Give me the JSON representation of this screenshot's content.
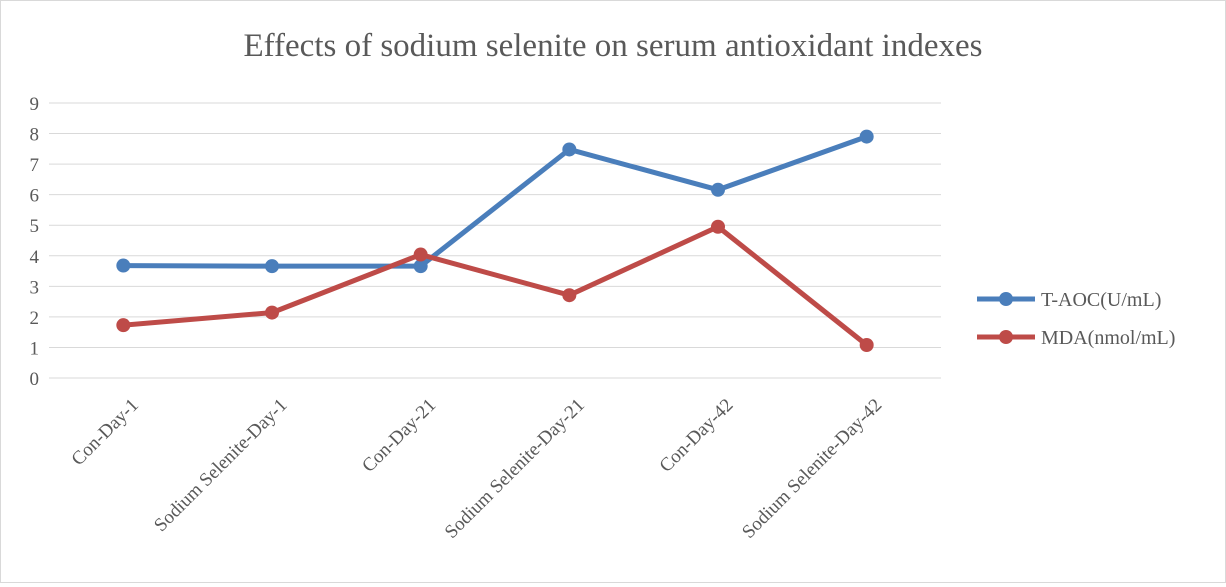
{
  "chart_data": {
    "type": "line",
    "title": "Effects of sodium selenite on serum antioxidant indexes",
    "xlabel": "",
    "ylabel": "",
    "categories": [
      "Con-Day-1",
      "Sodium Selenite-Day-1",
      "Con-Day-21",
      "Sodium Selenite-Day-21",
      "Con-Day-42",
      "Sodium Selenite-Day-42"
    ],
    "ylim": [
      0,
      9
    ],
    "yticks": [
      "0",
      "1",
      "2",
      "3",
      "4",
      "5",
      "6",
      "7",
      "8",
      "9"
    ],
    "grid": true,
    "legend_position": "right",
    "series": [
      {
        "name": "T-AOC(U/mL)",
        "color": "#4a7ebb",
        "values": [
          3.68,
          3.66,
          3.66,
          7.48,
          6.16,
          7.9
        ]
      },
      {
        "name": "MDA(nmol/mL)",
        "color": "#be4b48",
        "values": [
          1.73,
          2.14,
          4.04,
          2.71,
          4.95,
          1.08
        ]
      }
    ]
  }
}
